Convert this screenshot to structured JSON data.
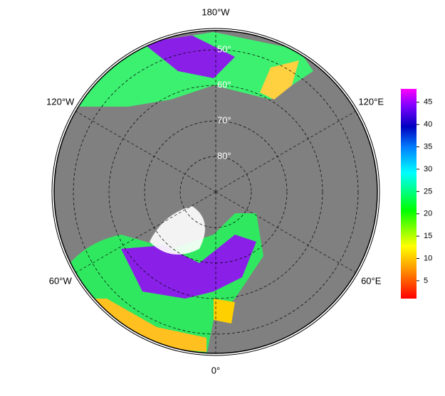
{
  "map": {
    "longitude_labels": [
      {
        "value": -180,
        "label": "180°W"
      },
      {
        "value": -120,
        "label": "120°W"
      },
      {
        "value": 120,
        "label": "120°E"
      },
      {
        "value": -60,
        "label": "60°W"
      },
      {
        "value": 60,
        "label": "60°E"
      },
      {
        "value": 0,
        "label": "0°"
      }
    ],
    "latitude_labels": [
      {
        "value": 50,
        "label": "50°"
      },
      {
        "value": 60,
        "label": "60°"
      },
      {
        "value": 70,
        "label": "70°"
      },
      {
        "value": 80,
        "label": "80°"
      }
    ]
  },
  "colorbar": {
    "lim": [
      1,
      48
    ],
    "ticks": [
      5,
      10,
      15,
      20,
      25,
      30,
      35,
      40,
      45
    ]
  }
}
